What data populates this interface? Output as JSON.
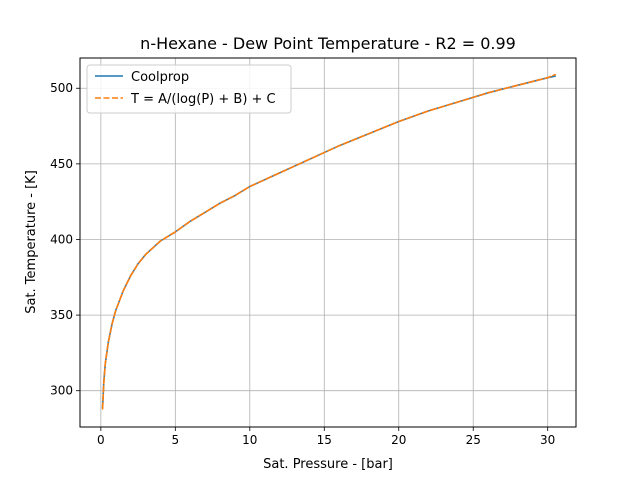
{
  "chart_data": {
    "type": "line",
    "title": "n-Hexane - Dew Point Temperature - R2 = 0.99",
    "xlabel": "Sat. Pressure - [bar]",
    "ylabel": "Sat. Temperature - [K]",
    "xlim": [
      -1.4,
      31.9
    ],
    "ylim": [
      276,
      520
    ],
    "xticks": [
      0,
      5,
      10,
      15,
      20,
      25,
      30
    ],
    "yticks": [
      300,
      350,
      400,
      450,
      500
    ],
    "grid": true,
    "legend_position": "top-left",
    "series": [
      {
        "name": "Coolprop",
        "color": "#1f77b4",
        "style": "solid",
        "x": [
          0.12,
          0.2,
          0.3,
          0.5,
          0.75,
          1.0,
          1.5,
          2.0,
          2.5,
          3.0,
          4.0,
          5.0,
          6.0,
          7.0,
          8.0,
          9.0,
          10.0,
          12.0,
          14.0,
          16.0,
          18.0,
          20.0,
          22.0,
          24.0,
          26.0,
          28.0,
          30.0,
          30.5
        ],
        "y": [
          289,
          306,
          318,
          332,
          344,
          353,
          366,
          376,
          384,
          390,
          399,
          405,
          412,
          418,
          424,
          429,
          435,
          444,
          453,
          462,
          470,
          478,
          485,
          491,
          497,
          502,
          507,
          508
        ]
      },
      {
        "name": "T = A/(log(P) + B) + C",
        "color": "#ff7f0e",
        "style": "dashed",
        "x": [
          0.12,
          0.2,
          0.3,
          0.5,
          0.75,
          1.0,
          1.5,
          2.0,
          2.5,
          3.0,
          4.0,
          5.0,
          6.0,
          7.0,
          8.0,
          9.0,
          10.0,
          12.0,
          14.0,
          16.0,
          18.0,
          20.0,
          22.0,
          24.0,
          26.0,
          28.0,
          30.0,
          30.5
        ],
        "y": [
          288,
          305,
          318,
          332,
          344,
          353,
          366,
          376,
          384,
          390,
          399,
          405,
          412,
          418,
          424,
          429,
          435,
          444,
          453,
          462,
          470,
          478,
          485,
          491,
          497,
          502,
          507,
          509
        ]
      }
    ]
  }
}
